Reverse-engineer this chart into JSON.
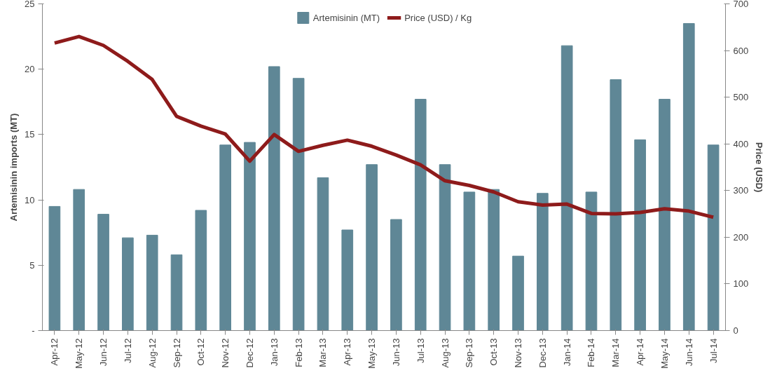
{
  "chart_data": {
    "type": "bar",
    "ylabel": "Artemisinin imports (MT)",
    "y2label": "Price (USD)",
    "categories": [
      "Apr-12",
      "May-12",
      "Jun-12",
      "Jul-12",
      "Aug-12",
      "Sep-12",
      "Oct-12",
      "Nov-12",
      "Dec-12",
      "Jan-13",
      "Feb-13",
      "Mar-13",
      "Apr-13",
      "May-13",
      "Jun-13",
      "Jul-13",
      "Aug-13",
      "Sep-13",
      "Oct-13",
      "Nov-13",
      "Dec-13",
      "Jan-14",
      "Feb-14",
      "Mar-14",
      "Apr-14",
      "May-14",
      "Jun-14",
      "Jul-14"
    ],
    "series": [
      {
        "name": "Artemisinin (MT)",
        "color": "#5f8796",
        "values": [
          9.5,
          10.8,
          8.9,
          7.1,
          7.3,
          5.8,
          9.2,
          14.2,
          14.4,
          20.2,
          19.3,
          11.7,
          7.7,
          12.7,
          8.5,
          17.7,
          12.7,
          10.6,
          10.8,
          5.7,
          10.5,
          21.8,
          10.6,
          19.2,
          14.6,
          17.7,
          23.5,
          14.2
        ]
      },
      {
        "name": "Price (USD) / Kg",
        "type": "line",
        "axis": "y2",
        "color": "#8e1b1b",
        "values": [
          616,
          630,
          611,
          577,
          538,
          459,
          438,
          421,
          363,
          420,
          384,
          397,
          408,
          395,
          376,
          355,
          321,
          311,
          297,
          276,
          269,
          271,
          251,
          250,
          253,
          261,
          256,
          243
        ]
      }
    ],
    "ylim": [
      0,
      25
    ],
    "yticks": [
      {
        "value": 0,
        "label": "-"
      },
      5,
      10,
      15,
      20,
      25
    ],
    "y2lim": [
      0,
      700
    ],
    "y2ticks": [
      0,
      100,
      200,
      300,
      400,
      500,
      600,
      700
    ],
    "grid": false,
    "legend": "top",
    "line_style": "solid",
    "marker": "none"
  }
}
